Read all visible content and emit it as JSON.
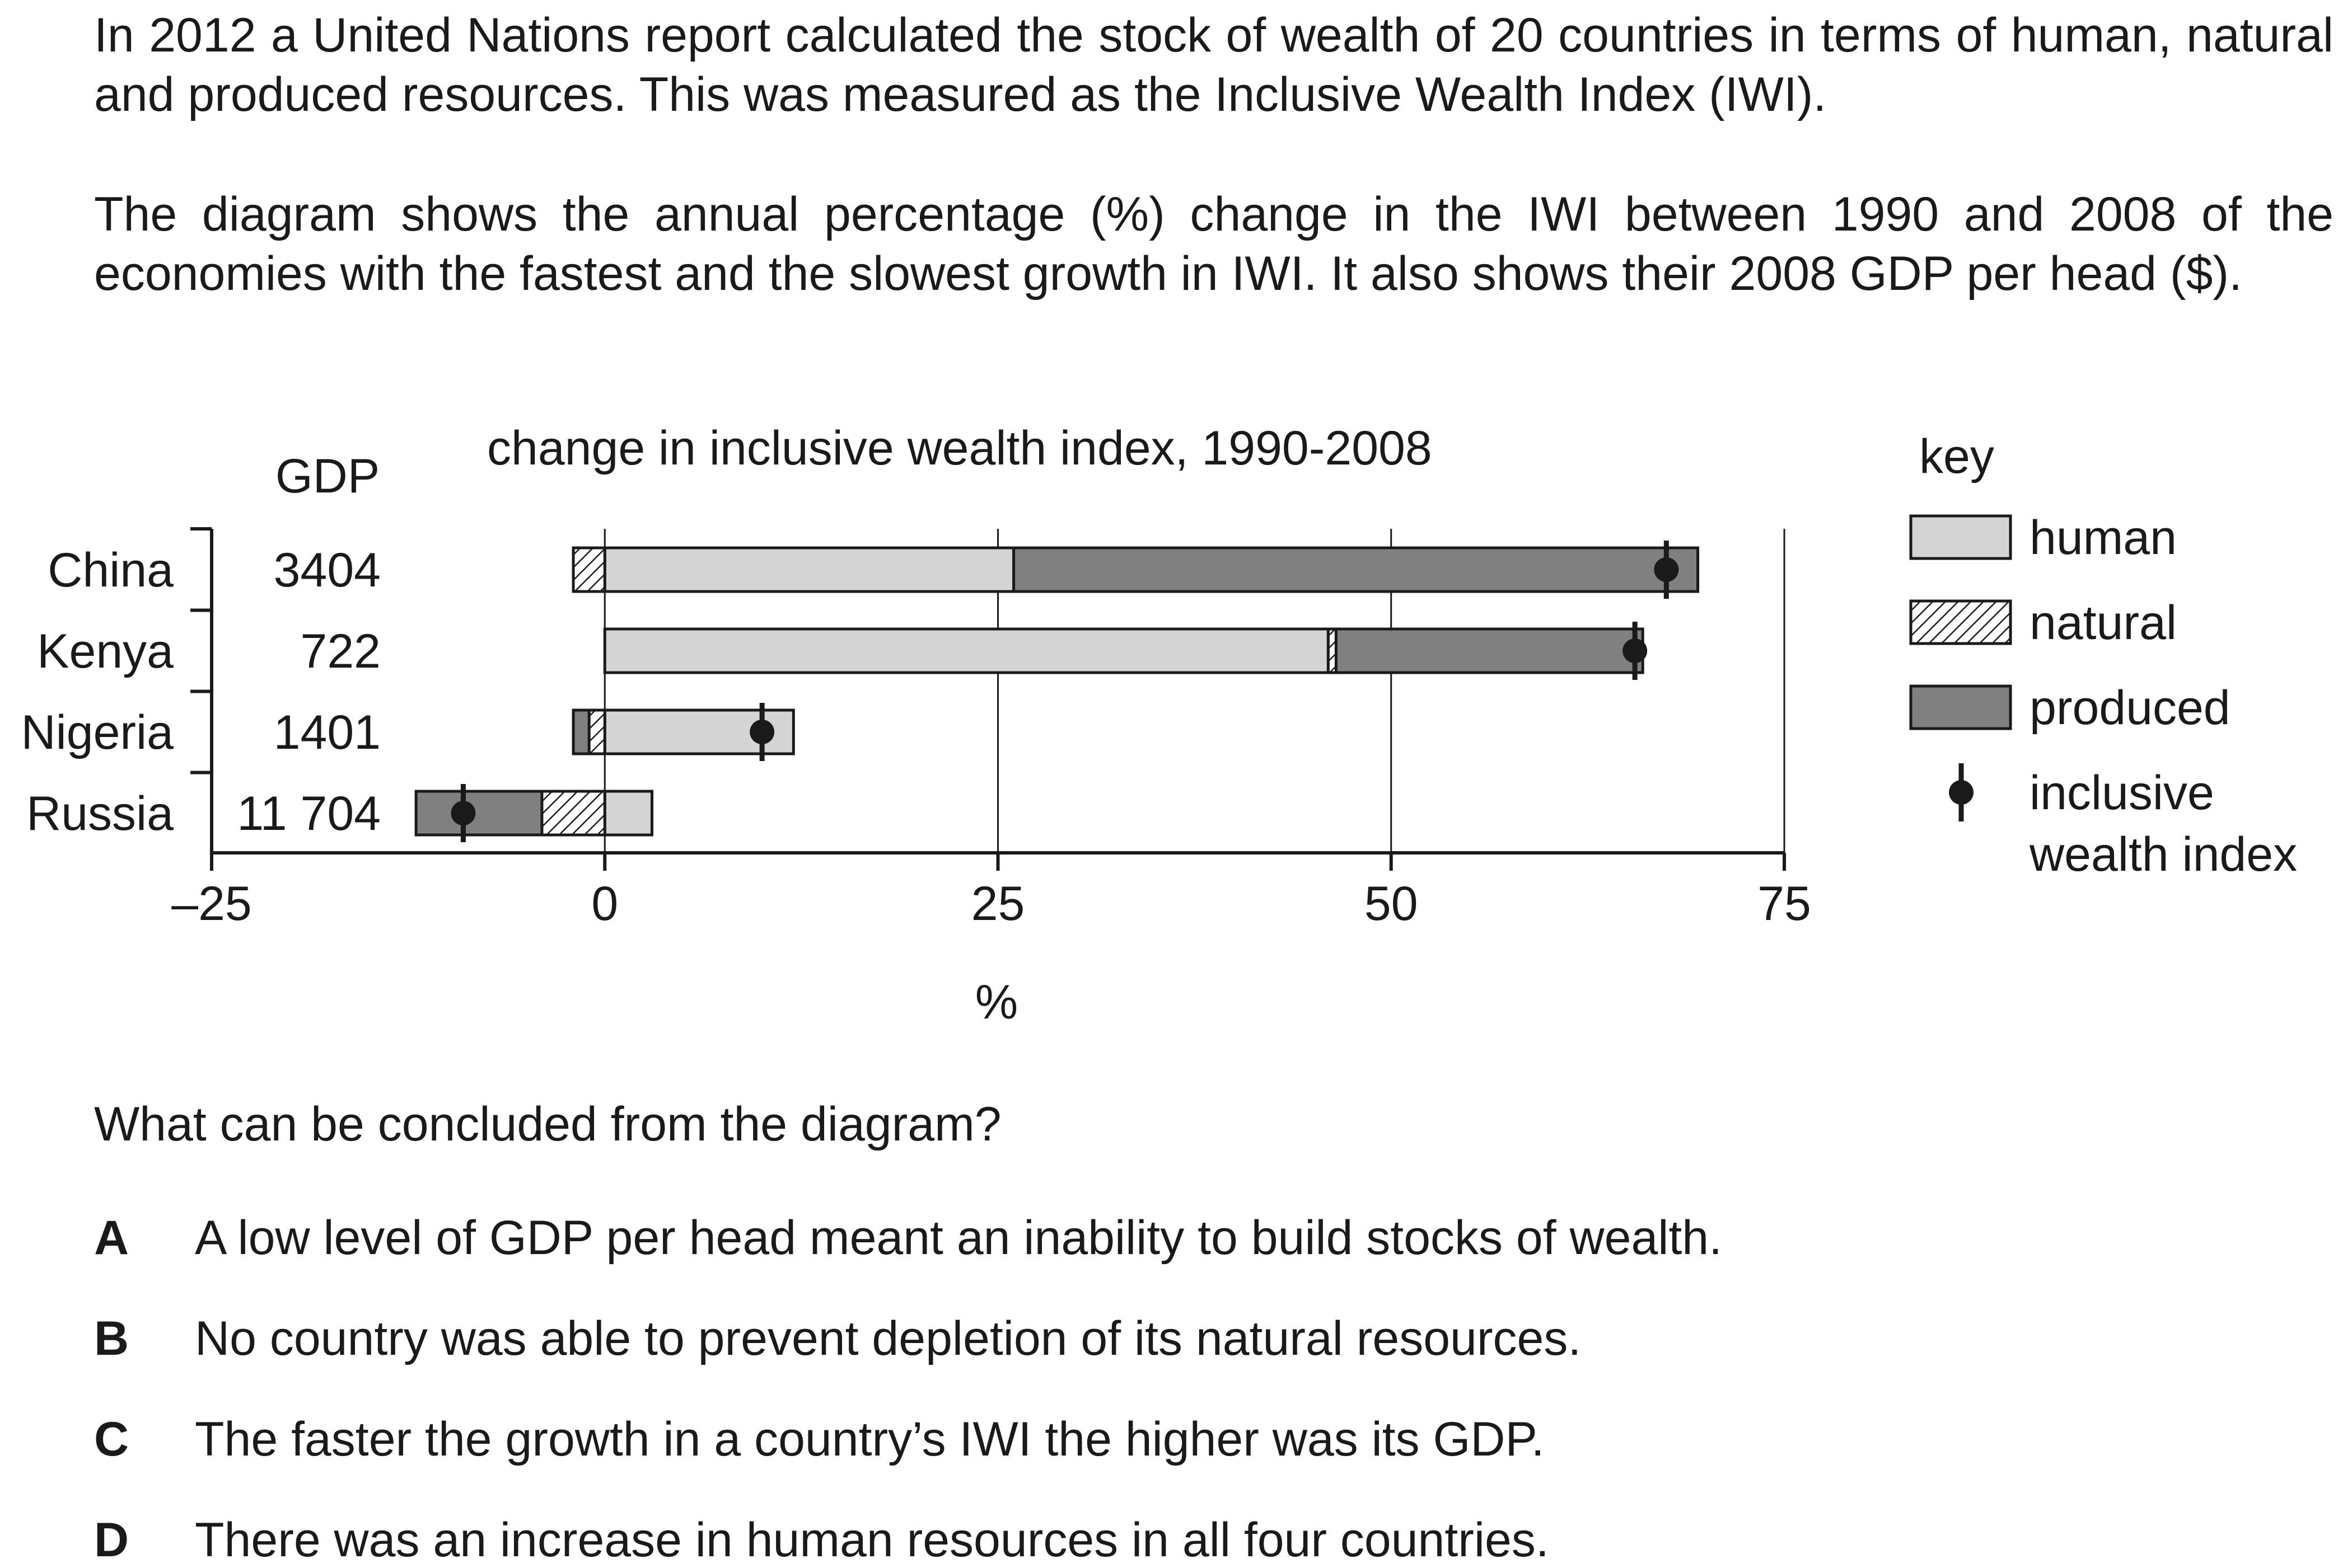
{
  "intro": {
    "paragraph1": "In 2012 a United Nations report calculated the stock of wealth of 20 countries in terms of human, natural and produced resources. This was measured as the Inclusive Wealth Index (IWI).",
    "paragraph2": "The diagram shows the annual percentage (%) change in the IWI between 1990 and 2008 of the economies with the fastest and the slowest growth in IWI. It also shows their 2008 GDP per head ($)."
  },
  "chart_data": {
    "type": "bar",
    "stacked": true,
    "orientation": "horizontal",
    "title": "change in inclusive wealth index, 1990-2008",
    "xlabel": "%",
    "xlim": [
      -25,
      75
    ],
    "xticks": [
      "–25",
      "0",
      "25",
      "50",
      "75"
    ],
    "xtick_values": [
      -25,
      0,
      25,
      50,
      75
    ],
    "gdp_header": "GDP",
    "categories": [
      "China",
      "Kenya",
      "Nigeria",
      "Russia"
    ],
    "gdp": [
      "3404",
      "722",
      "1401",
      "11 704"
    ],
    "series": [
      {
        "name": "human",
        "values": [
          26,
          46,
          12,
          3
        ]
      },
      {
        "name": "natural",
        "values": [
          -2,
          0.5,
          -1,
          -4
        ]
      },
      {
        "name": "produced",
        "values": [
          43.5,
          19.5,
          -1,
          -8
        ]
      }
    ],
    "iwi": [
      67.5,
      65.5,
      10,
      -9
    ],
    "key_title": "key",
    "legend": [
      {
        "id": "human",
        "label": "human",
        "kind": "box",
        "color": "#d4d4d4"
      },
      {
        "id": "natural",
        "label": "natural",
        "kind": "hatch",
        "color": "#ffffff"
      },
      {
        "id": "produced",
        "label": "produced",
        "kind": "box",
        "color": "#808080"
      },
      {
        "id": "iwi",
        "label_line1": "inclusive",
        "label_line2": "wealth index",
        "kind": "marker",
        "color": "#1a1a1a"
      }
    ],
    "grid": true,
    "legend_position": "right"
  },
  "question": "What can be concluded from the diagram?",
  "options": [
    {
      "letter": "A",
      "text": "A low level of GDP per head meant an inability to build stocks of wealth."
    },
    {
      "letter": "B",
      "text": "No country was able to prevent depletion of its natural resources."
    },
    {
      "letter": "C",
      "text": "The faster the growth in a country’s IWI the higher was its GDP."
    },
    {
      "letter": "D",
      "text": "There was an increase in human resources in all four countries."
    }
  ]
}
